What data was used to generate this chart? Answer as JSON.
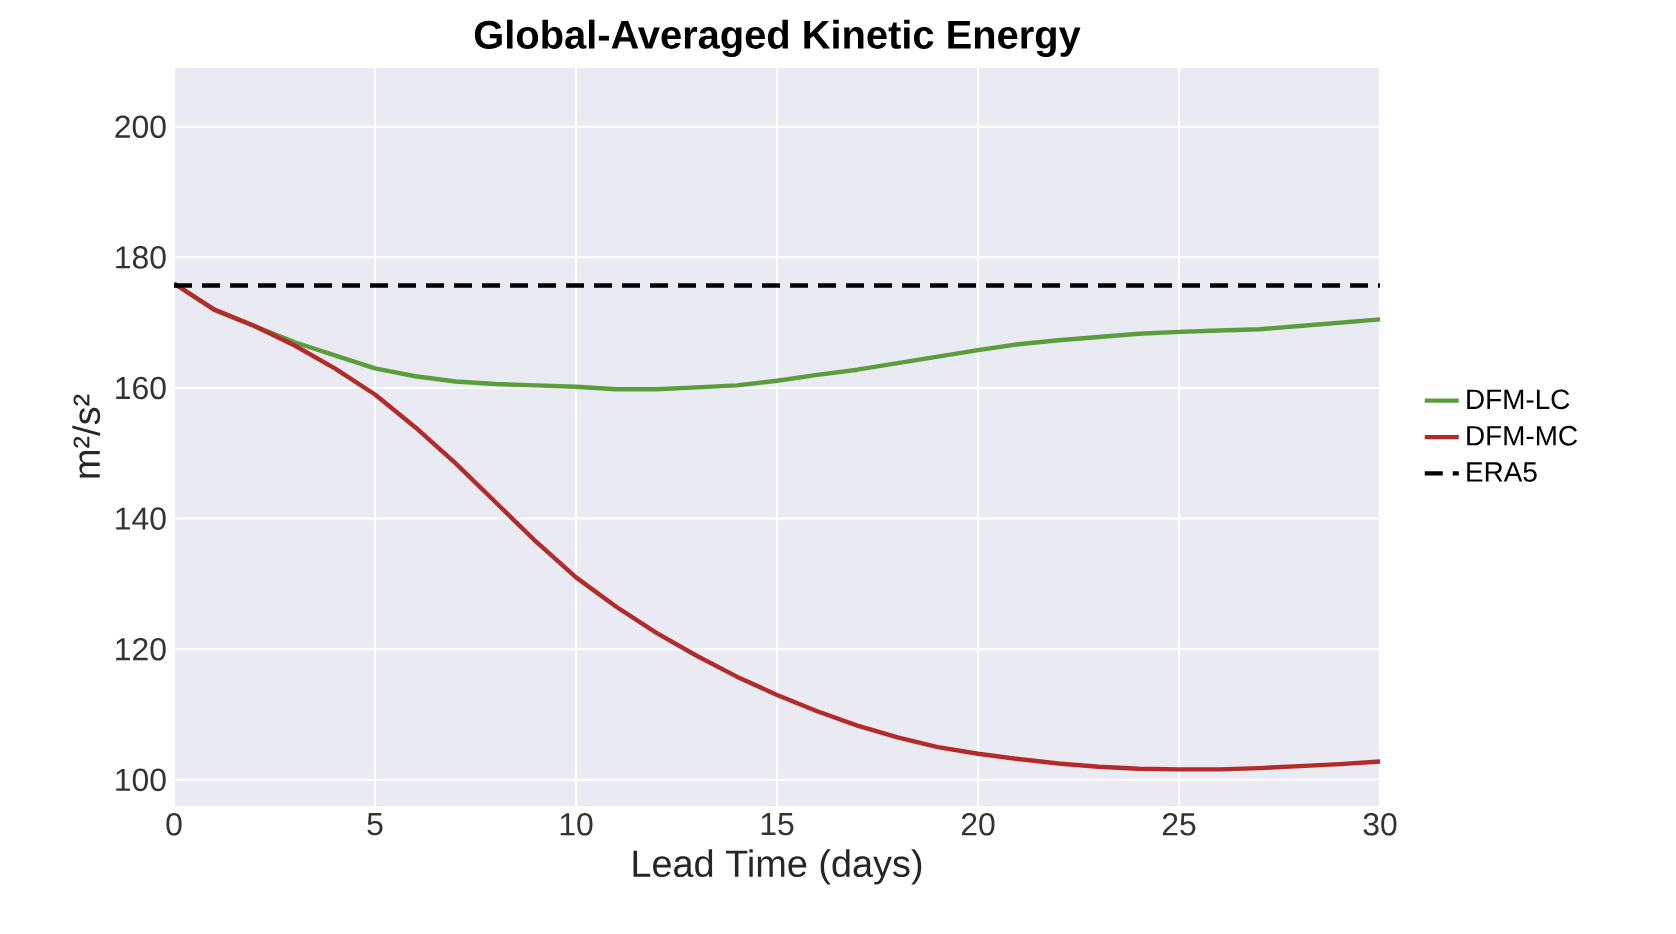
{
  "chart_data": {
    "type": "line",
    "title": "Global-Averaged Kinetic Energy",
    "xlabel": "Lead Time (days)",
    "ylabel": "m²/s²",
    "xlim": [
      0,
      30
    ],
    "ylim": [
      96,
      209
    ],
    "xticks": [
      0,
      5,
      10,
      15,
      20,
      25,
      30
    ],
    "yticks": [
      100,
      120,
      140,
      160,
      180,
      200
    ],
    "grid": true,
    "legend": "right",
    "marker": "none",
    "series": [
      {
        "name": "DFM-LC",
        "color": "#5a9e3c",
        "line_style": "solid",
        "x": [
          0,
          1,
          2,
          3,
          4,
          5,
          6,
          7,
          8,
          9,
          10,
          11,
          12,
          13,
          14,
          15,
          16,
          17,
          18,
          19,
          20,
          21,
          22,
          23,
          24,
          25,
          26,
          27,
          28,
          29,
          30
        ],
        "values": [
          176,
          172,
          169.5,
          167,
          165,
          163,
          161.8,
          161,
          160.6,
          160.4,
          160.2,
          159.8,
          159.8,
          160.1,
          160.4,
          161.1,
          162,
          162.8,
          163.8,
          164.8,
          165.8,
          166.7,
          167.3,
          167.8,
          168.3,
          168.6,
          168.8,
          169,
          169.5,
          170,
          170.5
        ]
      },
      {
        "name": "DFM-MC",
        "color": "#b22a2a",
        "line_style": "solid",
        "x": [
          0,
          1,
          2,
          3,
          4,
          5,
          6,
          7,
          8,
          9,
          10,
          11,
          12,
          13,
          14,
          15,
          16,
          17,
          18,
          19,
          20,
          21,
          22,
          23,
          24,
          25,
          26,
          27,
          28,
          29,
          30
        ],
        "values": [
          176,
          172,
          169.5,
          166.5,
          163,
          159,
          154,
          148.5,
          142.5,
          136.5,
          131,
          126.5,
          122.5,
          119,
          115.8,
          113,
          110.5,
          108.3,
          106.5,
          105,
          104,
          103.2,
          102.5,
          102,
          101.7,
          101.6,
          101.6,
          101.8,
          102.1,
          102.4,
          102.8
        ]
      },
      {
        "name": "ERA5",
        "color": "#000000",
        "line_style": "dashed",
        "x": [
          0,
          30
        ],
        "values": [
          175.7,
          175.7
        ]
      }
    ]
  }
}
